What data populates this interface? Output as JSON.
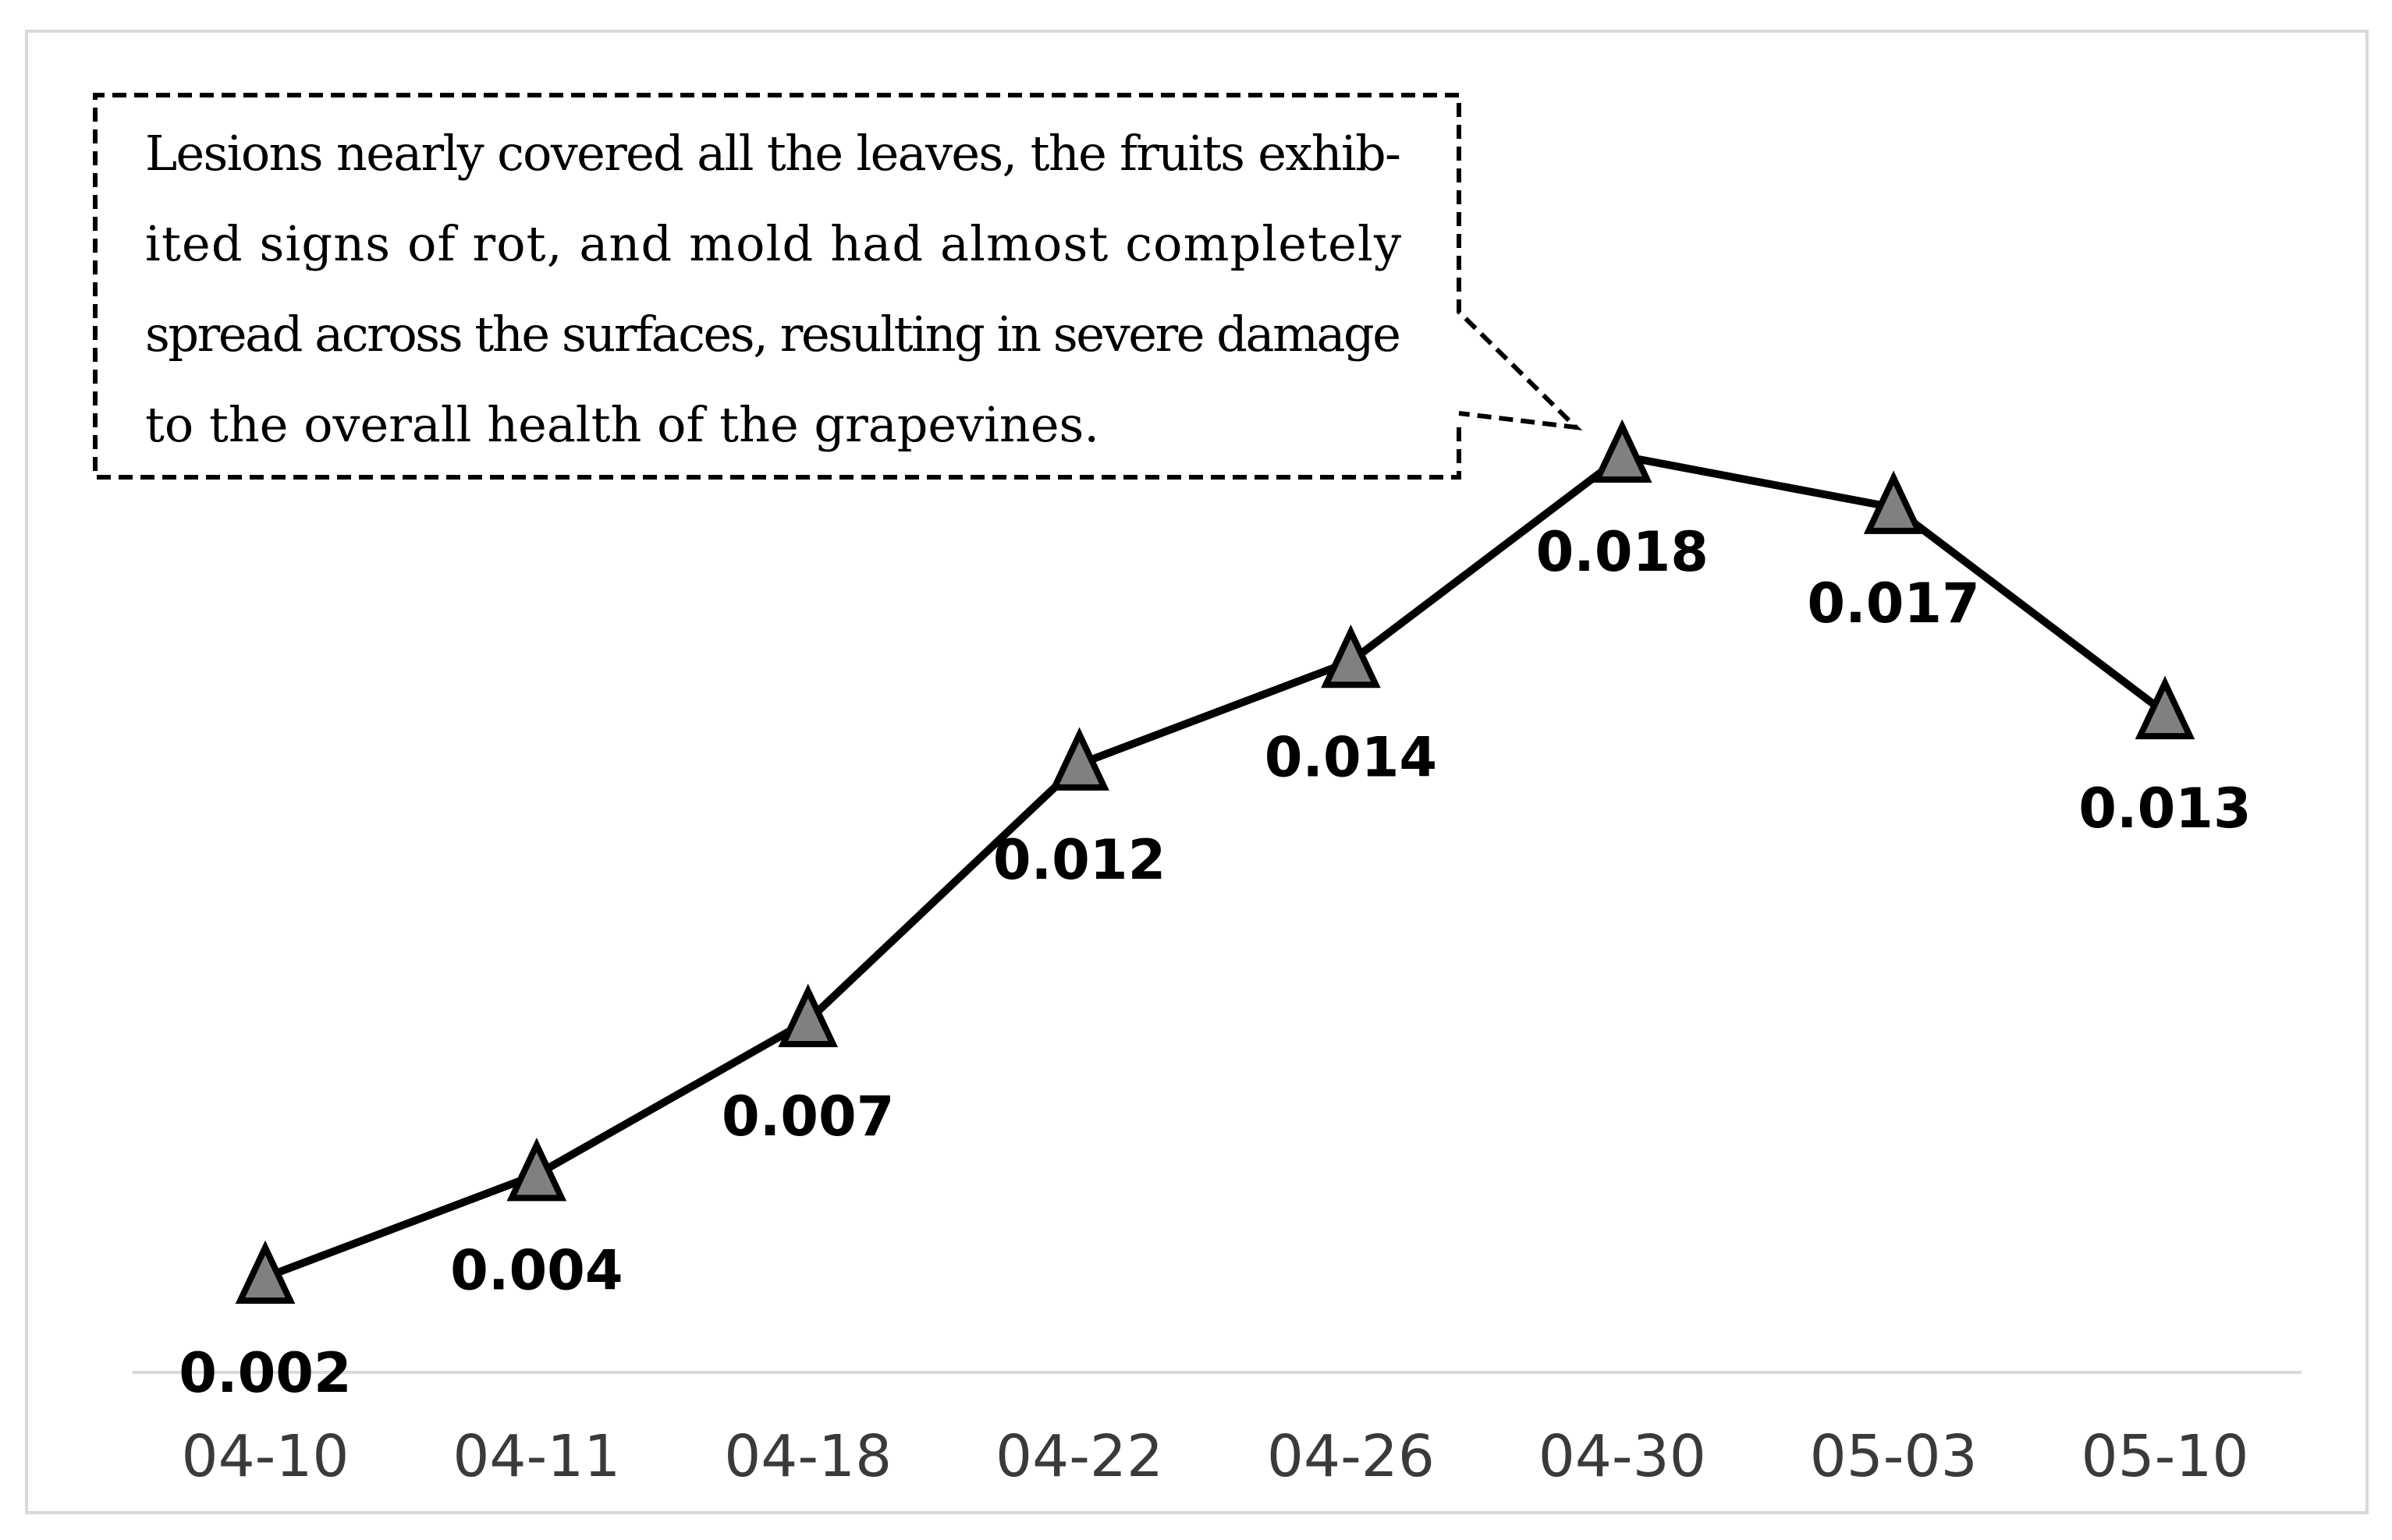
{
  "chart_data": {
    "type": "line",
    "title": "",
    "xlabel": "",
    "ylabel": "",
    "categories": [
      "04-10",
      "04-11",
      "04-18",
      "04-22",
      "04-26",
      "04-30",
      "05-03",
      "05-10"
    ],
    "series": [
      {
        "values": [
          0.002,
          0.004,
          0.007,
          0.012,
          0.014,
          0.018,
          0.017,
          0.013
        ],
        "data_labels": [
          "0.002",
          "0.004",
          "0.007",
          "0.012",
          "0.014",
          "0.018",
          "0.017",
          "0.013"
        ],
        "marker": "triangle",
        "line_color": "#000000",
        "marker_color": "#808080"
      }
    ],
    "ylim": [
      0,
      0.02
    ],
    "grid": false,
    "legend": "none",
    "annotation": {
      "target_category": "04-30",
      "lines": [
        "Lesions nearly covered all the leaves, the fruits exhib-",
        "ited signs of rot, and mold had almost completely",
        "spread across the surfaces, resulting in severe damage",
        "to the overall health of the grapevines."
      ]
    }
  }
}
